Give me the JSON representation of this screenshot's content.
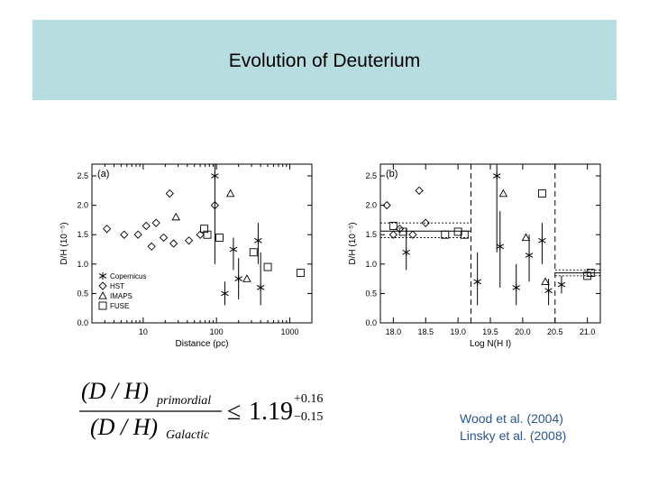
{
  "slide": {
    "title": "Evolution of Deuterium",
    "credits": [
      "Wood et al. (2004)",
      "Linsky et al. (2008)"
    ]
  },
  "formula": {
    "num_base": "(D / H)",
    "num_sub": "primordial",
    "den_base": "(D / H)",
    "den_sub": "Galactic",
    "relation": "≤",
    "value": "1.19",
    "upper_err": "+0.16",
    "lower_err": "−0.15"
  },
  "colors": {
    "title_bar": "#b7dde0",
    "credits": "#2a5590",
    "ink": "#000000"
  },
  "chart_data": [
    {
      "type": "scatter",
      "panel_label": "(a)",
      "xlabel": "Distance (pc)",
      "ylabel": "D/H (10⁻⁵)",
      "xscale": "log",
      "xlim": [
        2,
        2000
      ],
      "ylim": [
        0,
        2.7
      ],
      "xticks": [
        10,
        100,
        1000
      ],
      "yticks": [
        0.0,
        0.5,
        1.0,
        1.5,
        2.0,
        2.5
      ],
      "ytick_labels": [
        "0.0",
        "0.5",
        "1.0",
        "1.5",
        "2.0",
        "2.5"
      ],
      "legend_position": "bottom-left",
      "legend": [
        {
          "marker": "asterisk",
          "label": "Copernicus"
        },
        {
          "marker": "diamond",
          "label": "HST"
        },
        {
          "marker": "triangle",
          "label": "IMAPS"
        },
        {
          "marker": "square",
          "label": "FUSE"
        }
      ],
      "series": [
        {
          "name": "Copernicus",
          "marker": "asterisk",
          "points": [
            {
              "x": 95,
              "y": 2.5,
              "lo": 1.0,
              "hi": 2.7
            },
            {
              "x": 130,
              "y": 0.5,
              "lo": 0.3,
              "hi": 0.7
            },
            {
              "x": 170,
              "y": 1.25,
              "lo": 0.9,
              "hi": 1.45
            },
            {
              "x": 200,
              "y": 0.75,
              "lo": 0.4,
              "hi": 1.1
            },
            {
              "x": 370,
              "y": 1.4,
              "lo": 1.0,
              "hi": 1.7
            },
            {
              "x": 400,
              "y": 0.6,
              "lo": 0.3,
              "hi": 1.2
            }
          ]
        },
        {
          "name": "HST",
          "marker": "diamond",
          "points": [
            {
              "x": 3.2,
              "y": 1.6
            },
            {
              "x": 5.5,
              "y": 1.5
            },
            {
              "x": 8.5,
              "y": 1.5
            },
            {
              "x": 11,
              "y": 1.65
            },
            {
              "x": 13,
              "y": 1.3
            },
            {
              "x": 15,
              "y": 1.7
            },
            {
              "x": 19,
              "y": 1.45
            },
            {
              "x": 23,
              "y": 2.2
            },
            {
              "x": 26,
              "y": 1.35
            },
            {
              "x": 42,
              "y": 1.4
            },
            {
              "x": 60,
              "y": 1.5
            },
            {
              "x": 95,
              "y": 2.0
            }
          ]
        },
        {
          "name": "IMAPS",
          "marker": "triangle",
          "points": [
            {
              "x": 28,
              "y": 1.8
            },
            {
              "x": 155,
              "y": 2.2
            },
            {
              "x": 260,
              "y": 0.75
            }
          ]
        },
        {
          "name": "FUSE",
          "marker": "square",
          "points": [
            {
              "x": 68,
              "y": 1.6
            },
            {
              "x": 75,
              "y": 1.5
            },
            {
              "x": 110,
              "y": 1.45
            },
            {
              "x": 320,
              "y": 1.2
            },
            {
              "x": 500,
              "y": 0.95
            },
            {
              "x": 1400,
              "y": 0.85
            }
          ]
        }
      ]
    },
    {
      "type": "scatter",
      "panel_label": "(b)",
      "xlabel": "Log N(H I)",
      "ylabel": "D/H (10⁻⁵)",
      "xlim": [
        17.8,
        21.2
      ],
      "ylim": [
        0,
        2.7
      ],
      "xticks": [
        18.0,
        18.5,
        19.0,
        19.5,
        20.0,
        20.5,
        21.0
      ],
      "xtick_labels": [
        "18.0",
        "18.5",
        "19.0",
        "19.5",
        "20.0",
        "20.5",
        "21.0"
      ],
      "yticks": [
        0.0,
        0.5,
        1.0,
        1.5,
        2.0,
        2.5
      ],
      "ytick_labels": [
        "0.0",
        "0.5",
        "1.0",
        "1.5",
        "2.0",
        "2.5"
      ],
      "vertical_dashed_lines": [
        19.2,
        20.5
      ],
      "horizontal_levels": [
        {
          "x_from": 17.8,
          "x_to": 19.2,
          "y": 1.56,
          "band": [
            1.45,
            1.7
          ]
        },
        {
          "x_from": 20.5,
          "x_to": 21.2,
          "y": 0.85,
          "band": [
            0.8,
            0.9
          ]
        }
      ],
      "series": [
        {
          "name": "Copernicus",
          "marker": "asterisk",
          "points": [
            {
              "x": 18.2,
              "y": 1.2,
              "lo": 0.9,
              "hi": 1.6
            },
            {
              "x": 19.3,
              "y": 0.7,
              "lo": 0.3,
              "hi": 1.2
            },
            {
              "x": 19.6,
              "y": 2.5,
              "lo": 1.2,
              "hi": 2.7
            },
            {
              "x": 19.65,
              "y": 1.3,
              "lo": 0.6,
              "hi": 1.9
            },
            {
              "x": 19.9,
              "y": 0.6,
              "lo": 0.3,
              "hi": 1.0
            },
            {
              "x": 20.1,
              "y": 1.15,
              "lo": 0.7,
              "hi": 1.5
            },
            {
              "x": 20.3,
              "y": 1.4,
              "lo": 1.0,
              "hi": 1.7
            },
            {
              "x": 20.4,
              "y": 0.55,
              "lo": 0.3,
              "hi": 0.75
            },
            {
              "x": 20.6,
              "y": 0.65,
              "lo": 0.5,
              "hi": 0.8
            }
          ]
        },
        {
          "name": "HST",
          "marker": "diamond",
          "points": [
            {
              "x": 17.9,
              "y": 2.0
            },
            {
              "x": 18.0,
              "y": 1.5
            },
            {
              "x": 18.3,
              "y": 1.5
            },
            {
              "x": 18.4,
              "y": 2.25
            },
            {
              "x": 18.5,
              "y": 1.7
            },
            {
              "x": 18.1,
              "y": 1.6
            }
          ]
        },
        {
          "name": "IMAPS",
          "marker": "triangle",
          "points": [
            {
              "x": 19.7,
              "y": 2.2
            },
            {
              "x": 20.05,
              "y": 1.45
            },
            {
              "x": 20.35,
              "y": 0.7
            }
          ]
        },
        {
          "name": "FUSE",
          "marker": "square",
          "points": [
            {
              "x": 18.0,
              "y": 1.65
            },
            {
              "x": 18.15,
              "y": 1.55
            },
            {
              "x": 18.8,
              "y": 1.5
            },
            {
              "x": 19.0,
              "y": 1.55
            },
            {
              "x": 19.1,
              "y": 1.5
            },
            {
              "x": 20.3,
              "y": 2.2
            },
            {
              "x": 21.0,
              "y": 0.8
            },
            {
              "x": 21.05,
              "y": 0.85
            }
          ]
        }
      ]
    }
  ]
}
